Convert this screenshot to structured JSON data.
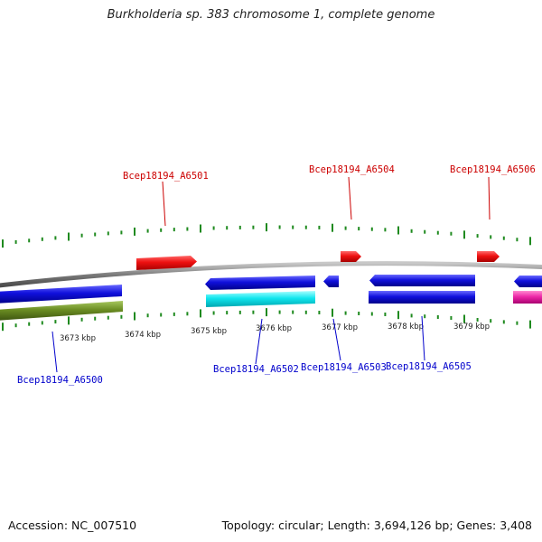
{
  "title": "Burkholderia sp. 383 chromosome 1, complete genome",
  "footer": {
    "accession_label": "Accession:",
    "accession": "NC_007510",
    "summary": "Topology: circular; Length: 3,694,126 bp; Genes: 3,408"
  },
  "colors": {
    "backbone": "#8a8a8a",
    "tick": "#1f8a1f",
    "forward_gene": "#ee1111",
    "forward_label": "#cc0000",
    "reverse_label": "#0000cc",
    "blue_gene": "#1111dd",
    "cyan_gene": "#11e6ee",
    "olive_gene": "#6b8e23",
    "magenta_gene": "#ee2aa8"
  },
  "scale": {
    "unit": "kbp",
    "labels": [
      "3673 kbp",
      "3674 kbp",
      "3675 kbp",
      "3676 kbp",
      "3677 kbp",
      "3678 kbp",
      "3679 kbp"
    ]
  },
  "genes": [
    {
      "label": "Bcep18194_A6500",
      "strand": "reverse",
      "color": "blue"
    },
    {
      "label": "Bcep18194_A6501",
      "strand": "forward",
      "color": "red"
    },
    {
      "label": "Bcep18194_A6502",
      "strand": "reverse",
      "color": "blue"
    },
    {
      "label": "Bcep18194_A6503",
      "strand": "reverse",
      "color": "blue"
    },
    {
      "label": "Bcep18194_A6504",
      "strand": "forward",
      "color": "red"
    },
    {
      "label": "Bcep18194_A6505",
      "strand": "reverse",
      "color": "blue"
    },
    {
      "label": "Bcep18194_A6506",
      "strand": "forward",
      "color": "red"
    }
  ]
}
